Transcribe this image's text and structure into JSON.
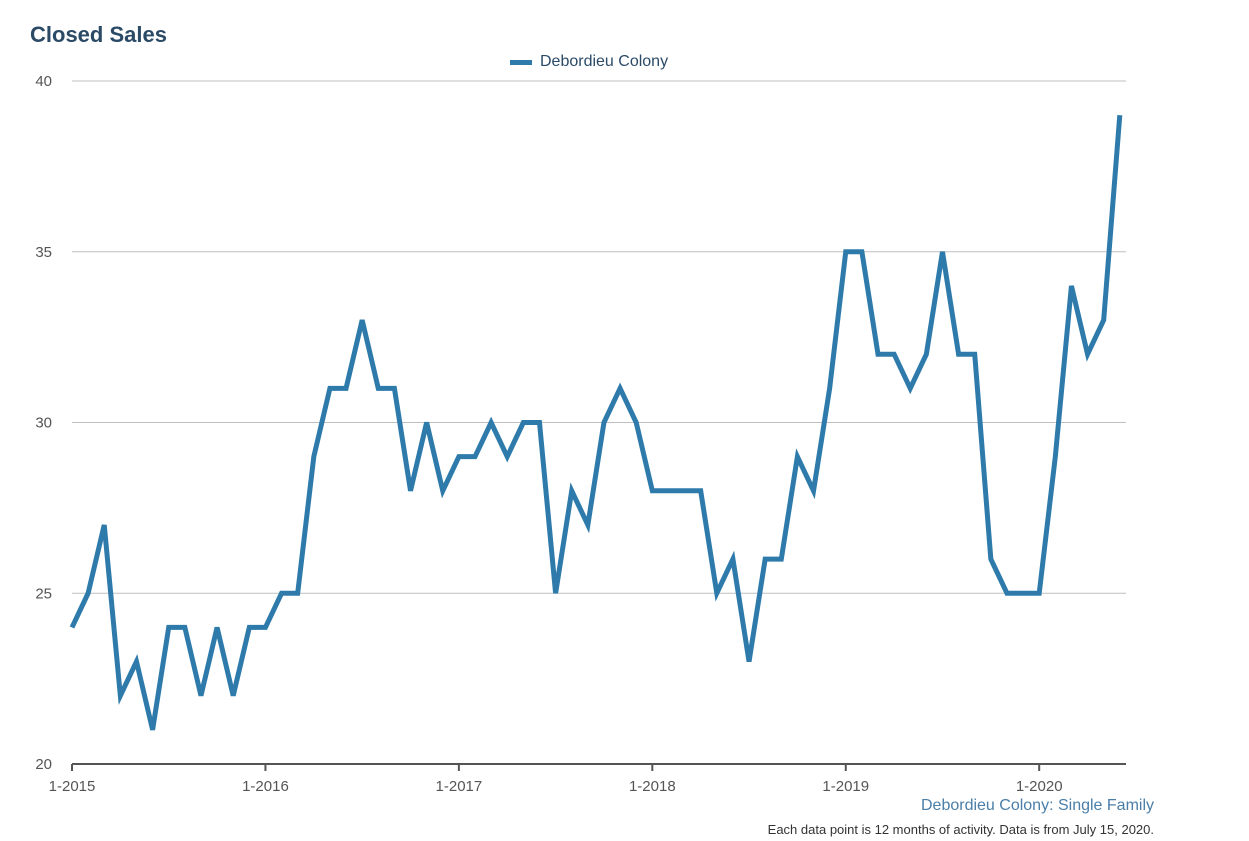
{
  "chart_data": {
    "type": "line",
    "title": "Closed Sales",
    "x": [
      "1-2015",
      "2-2015",
      "3-2015",
      "4-2015",
      "5-2015",
      "6-2015",
      "7-2015",
      "8-2015",
      "9-2015",
      "10-2015",
      "11-2015",
      "12-2015",
      "1-2016",
      "2-2016",
      "3-2016",
      "4-2016",
      "5-2016",
      "6-2016",
      "7-2016",
      "8-2016",
      "9-2016",
      "10-2016",
      "11-2016",
      "12-2016",
      "1-2017",
      "2-2017",
      "3-2017",
      "4-2017",
      "5-2017",
      "6-2017",
      "7-2017",
      "8-2017",
      "9-2017",
      "10-2017",
      "11-2017",
      "12-2017",
      "1-2018",
      "2-2018",
      "3-2018",
      "4-2018",
      "5-2018",
      "6-2018",
      "7-2018",
      "8-2018",
      "9-2018",
      "10-2018",
      "11-2018",
      "12-2018",
      "1-2019",
      "2-2019",
      "3-2019",
      "4-2019",
      "5-2019",
      "6-2019",
      "7-2019",
      "8-2019",
      "9-2019",
      "10-2019",
      "11-2019",
      "12-2019",
      "1-2020",
      "2-2020",
      "3-2020",
      "4-2020",
      "5-2020",
      "6-2020"
    ],
    "series": [
      {
        "name": "Debordieu Colony",
        "color": "#2e7bab",
        "values": [
          24,
          25,
          27,
          22,
          23,
          21,
          24,
          24,
          22,
          24,
          22,
          24,
          24,
          25,
          25,
          29,
          31,
          31,
          33,
          31,
          31,
          28,
          30,
          28,
          29,
          29,
          30,
          29,
          30,
          30,
          25,
          28,
          27,
          30,
          31,
          30,
          28,
          28,
          28,
          28,
          25,
          26,
          23,
          26,
          26,
          29,
          28,
          31,
          35,
          35,
          32,
          32,
          31,
          32,
          35,
          32,
          32,
          26,
          25,
          25,
          25,
          29,
          34,
          32,
          33,
          39
        ]
      }
    ],
    "xticks": [
      "1-2015",
      "1-2016",
      "1-2017",
      "1-2018",
      "1-2019",
      "1-2020"
    ],
    "yticks": [
      20,
      25,
      30,
      35,
      40
    ],
    "ylim": [
      20,
      40
    ],
    "grid": true,
    "legend_position": "top-center"
  },
  "footer": {
    "source": "Debordieu Colony: Single Family",
    "note": "Each data point is 12 months of activity. Data is from July 15, 2020."
  }
}
